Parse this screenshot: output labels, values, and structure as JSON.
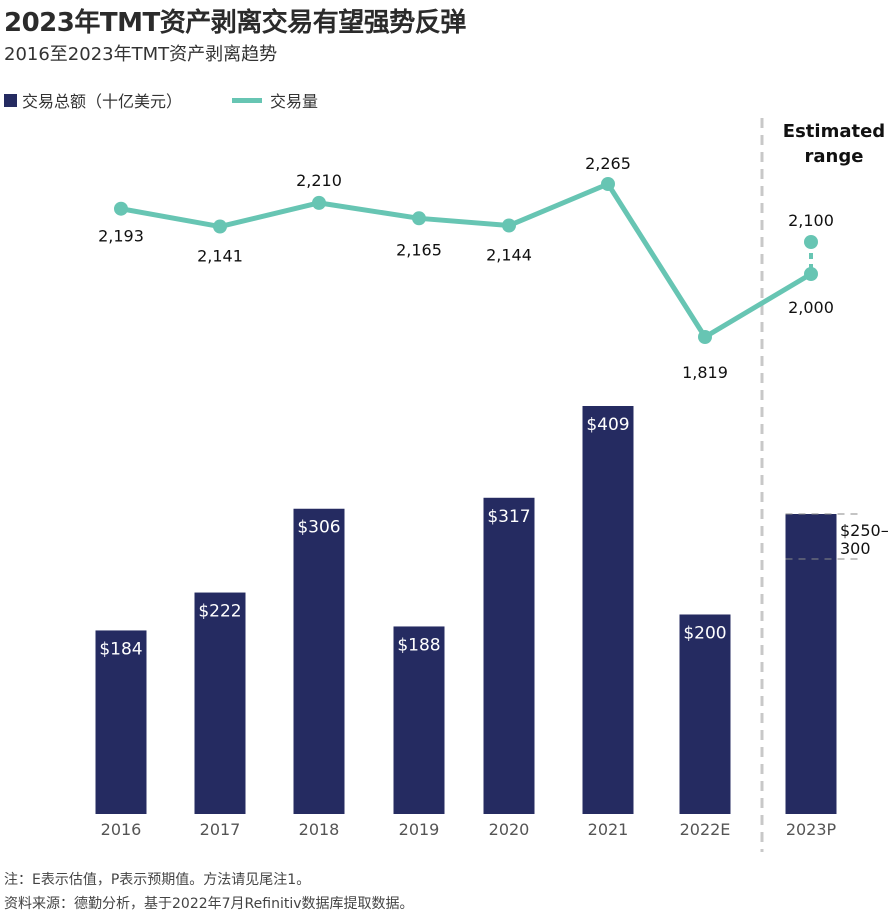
{
  "title": "2023年TMT资产剥离交易有望强势反弹",
  "subtitle": "2016至2023年TMT资产剥离趋势",
  "legend": {
    "bar_label": "交易总额（十亿美元）",
    "line_label": "交易量"
  },
  "colors": {
    "bar": "#252B61",
    "line": "#67C5B3",
    "divider": "#C8C8C8"
  },
  "estimated_label_line1": "Estimated",
  "estimated_label_line2": "range",
  "notes": {
    "note": "注：E表示估值，P表示预期值。方法请见尾注1。",
    "source": "资料来源：德勤分析，基于2022年7月Refinitiv数据库提取数据。"
  },
  "chart_data": {
    "type": "bar+line",
    "title": "2023年TMT资产剥离交易有望强势反弹",
    "subtitle": "2016至2023年TMT资产剥离趋势",
    "categories": [
      "2016",
      "2017",
      "2018",
      "2019",
      "2020",
      "2021",
      "2022E",
      "2023P"
    ],
    "series": [
      {
        "name": "交易总额（十亿美元）",
        "type": "bar",
        "values": [
          184,
          222,
          306,
          188,
          317,
          409,
          200,
          250
        ],
        "labels": [
          "$184",
          "$222",
          "$306",
          "$188",
          "$317",
          "$409",
          "$200",
          ""
        ],
        "range_last": [
          250,
          300
        ],
        "range_label_line1": "$250–",
        "range_label_line2": "300"
      },
      {
        "name": "交易量",
        "type": "line",
        "values": [
          2193,
          2141,
          2210,
          2165,
          2144,
          2265,
          1819,
          2000
        ],
        "labels": [
          "2,193",
          "2,141",
          "2,210",
          "2,165",
          "2,144",
          "2,265",
          "1,819",
          "2,000"
        ],
        "range_last": [
          2000,
          2100
        ],
        "range_high_label": "2,100"
      }
    ],
    "bar_ylim": [
      0,
      420
    ],
    "line_ylim": [
      1700,
      2300
    ],
    "grid": false,
    "legend_position": "top-left",
    "annotation": "Estimated range"
  }
}
